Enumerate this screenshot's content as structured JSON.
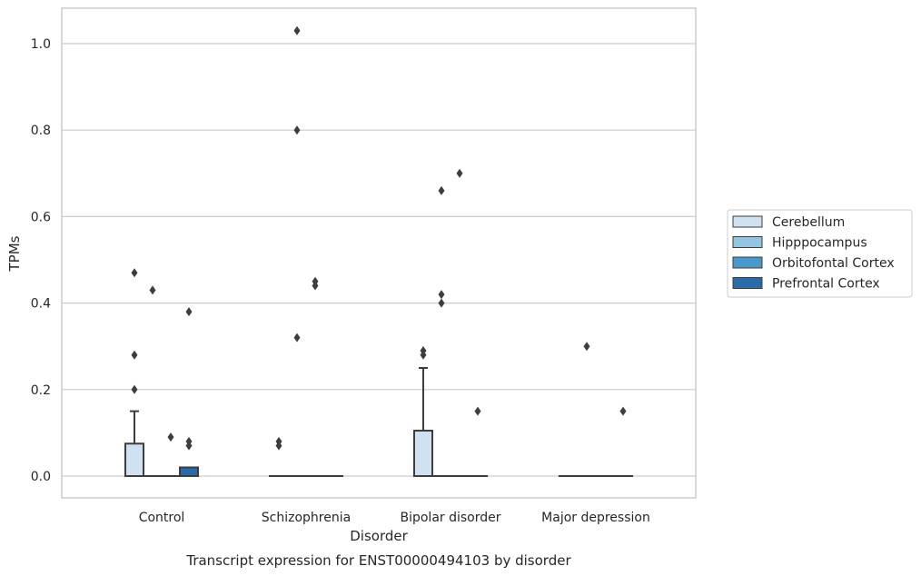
{
  "chart_data": {
    "type": "box",
    "title": "Transcript expression for ENST00000494103 by disorder",
    "xlabel": "Disorder",
    "ylabel": "TPMs",
    "ylim": [
      -0.05,
      1.08
    ],
    "yticks": [
      "0.0",
      "0.2",
      "0.4",
      "0.6",
      "0.8",
      "1.0"
    ],
    "ytick_values": [
      0.0,
      0.2,
      0.4,
      0.6,
      0.8,
      1.0
    ],
    "grid": true,
    "legend_position": "right",
    "categories": [
      "Control",
      "Schizophrenia",
      "Bipolar disorder",
      "Major depression"
    ],
    "series": [
      {
        "name": "Cerebellum",
        "color": "#d0e1f2",
        "boxes": [
          {
            "q1": 0.0,
            "median": 0.0,
            "q3": 0.075,
            "whisker_low": 0.0,
            "whisker_high": 0.15,
            "outliers": [
              0.2,
              0.28,
              0.47
            ]
          },
          {
            "q1": 0.0,
            "median": 0.0,
            "q3": 0.0,
            "whisker_low": 0.0,
            "whisker_high": 0.0,
            "outliers": [
              0.07,
              0.08
            ]
          },
          {
            "q1": 0.0,
            "median": 0.0,
            "q3": 0.105,
            "whisker_low": 0.0,
            "whisker_high": 0.25,
            "outliers": [
              0.28,
              0.29
            ]
          },
          {
            "q1": 0.0,
            "median": 0.0,
            "q3": 0.0,
            "whisker_low": 0.0,
            "whisker_high": 0.0,
            "outliers": []
          }
        ]
      },
      {
        "name": "Hipppocampus",
        "color": "#94c4df",
        "boxes": [
          {
            "q1": 0.0,
            "median": 0.0,
            "q3": 0.0,
            "whisker_low": 0.0,
            "whisker_high": 0.0,
            "outliers": [
              0.43
            ]
          },
          {
            "q1": 0.0,
            "median": 0.0,
            "q3": 0.0,
            "whisker_low": 0.0,
            "whisker_high": 0.0,
            "outliers": [
              0.32,
              0.8,
              1.03
            ]
          },
          {
            "q1": 0.0,
            "median": 0.0,
            "q3": 0.0,
            "whisker_low": 0.0,
            "whisker_high": 0.0,
            "outliers": [
              0.4,
              0.42,
              0.66
            ]
          },
          {
            "q1": 0.0,
            "median": 0.0,
            "q3": 0.0,
            "whisker_low": 0.0,
            "whisker_high": 0.0,
            "outliers": [
              0.3
            ]
          }
        ]
      },
      {
        "name": "Orbitofontal Cortex",
        "color": "#4a98c9",
        "boxes": [
          {
            "q1": 0.0,
            "median": 0.0,
            "q3": 0.0,
            "whisker_low": 0.0,
            "whisker_high": 0.0,
            "outliers": [
              0.09
            ]
          },
          {
            "q1": 0.0,
            "median": 0.0,
            "q3": 0.0,
            "whisker_low": 0.0,
            "whisker_high": 0.0,
            "outliers": [
              0.44,
              0.45
            ]
          },
          {
            "q1": 0.0,
            "median": 0.0,
            "q3": 0.0,
            "whisker_low": 0.0,
            "whisker_high": 0.0,
            "outliers": [
              0.7
            ]
          },
          {
            "q1": 0.0,
            "median": 0.0,
            "q3": 0.0,
            "whisker_low": 0.0,
            "whisker_high": 0.0,
            "outliers": []
          }
        ]
      },
      {
        "name": "Prefrontal Cortex",
        "color": "#2a6aa8",
        "boxes": [
          {
            "q1": 0.0,
            "median": 0.0,
            "q3": 0.02,
            "whisker_low": 0.0,
            "whisker_high": 0.02,
            "outliers": [
              0.07,
              0.08,
              0.38
            ]
          },
          {
            "q1": 0.0,
            "median": 0.0,
            "q3": 0.0,
            "whisker_low": 0.0,
            "whisker_high": 0.0,
            "outliers": []
          },
          {
            "q1": 0.0,
            "median": 0.0,
            "q3": 0.0,
            "whisker_low": 0.0,
            "whisker_high": 0.0,
            "outliers": [
              0.15
            ]
          },
          {
            "q1": 0.0,
            "median": 0.0,
            "q3": 0.0,
            "whisker_low": 0.0,
            "whisker_high": 0.0,
            "outliers": [
              0.15
            ]
          }
        ]
      }
    ]
  }
}
